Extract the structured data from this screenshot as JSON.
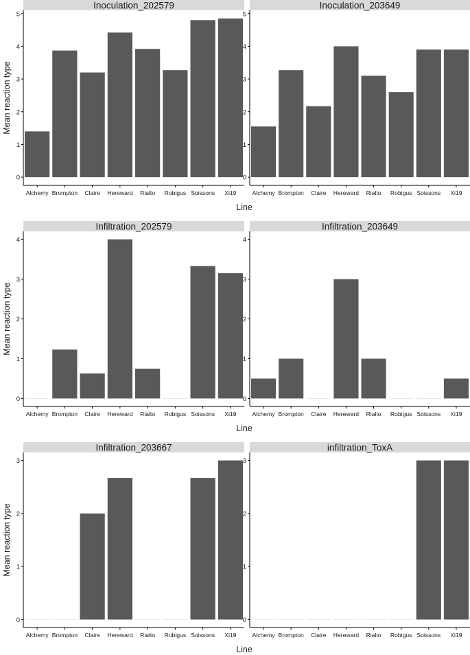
{
  "chart_data": [
    {
      "type": "bar",
      "title": "Inoculation_202579",
      "xlabel": "Line",
      "ylabel": "Mean reaction type",
      "categories": [
        "Alchemy",
        "Brompton",
        "Claire",
        "Hereward",
        "Rialto",
        "Robigus",
        "Soissons",
        "Xi19"
      ],
      "values": [
        1.4,
        3.87,
        3.2,
        4.42,
        3.92,
        3.27,
        4.8,
        4.85
      ],
      "ylim": [
        -0.25,
        5.1
      ],
      "yticks": [
        0,
        1,
        2,
        3,
        4,
        5
      ]
    },
    {
      "type": "bar",
      "title": "Inoculation_203649",
      "xlabel": "Line",
      "ylabel": "Mean reaction type",
      "categories": [
        "Alchemy",
        "Brompton",
        "Claire",
        "Hereward",
        "Rialto",
        "Robigus",
        "Soissons",
        "Xi19"
      ],
      "values": [
        1.55,
        3.27,
        2.17,
        4.0,
        3.1,
        2.6,
        3.9,
        3.9
      ],
      "ylim": [
        -0.25,
        5.1
      ],
      "yticks": [
        0,
        1,
        2,
        3,
        4,
        5
      ]
    },
    {
      "type": "bar",
      "title": "Infiltration_202579",
      "xlabel": "Line",
      "ylabel": "Mean reaction type",
      "categories": [
        "Alchemy",
        "Brompton",
        "Claire",
        "Hereward",
        "Rialto",
        "Robigus",
        "Soissons",
        "Xi19"
      ],
      "values": [
        0,
        1.23,
        0.63,
        4.0,
        0.75,
        0,
        3.33,
        3.15
      ],
      "ylim": [
        -0.2,
        4.2
      ],
      "yticks": [
        0,
        1,
        2,
        3,
        4
      ]
    },
    {
      "type": "bar",
      "title": "Infiltration_203649",
      "xlabel": "Line",
      "ylabel": "Mean reaction type",
      "categories": [
        "Alchemy",
        "Brompton",
        "Claire",
        "Hereward",
        "Rialto",
        "Robigus",
        "Soissons",
        "Xi19"
      ],
      "values": [
        0.5,
        1.0,
        0,
        3.0,
        1.0,
        0,
        0,
        0.5
      ],
      "ylim": [
        -0.2,
        4.2
      ],
      "yticks": [
        0,
        1,
        2,
        3,
        4
      ]
    },
    {
      "type": "bar",
      "title": "Infiltration_203667",
      "xlabel": "Line",
      "ylabel": "Mean reaction type",
      "categories": [
        "Alchemy",
        "Brompton",
        "Claire",
        "Hereward",
        "Rialto",
        "Robigus",
        "Soissons",
        "Xi19"
      ],
      "values": [
        0,
        0,
        2.0,
        2.67,
        0,
        0,
        2.67,
        3.0
      ],
      "ylim": [
        -0.15,
        3.15
      ],
      "yticks": [
        0,
        1,
        2,
        3
      ]
    },
    {
      "type": "bar",
      "title": "infiltration_ToxA",
      "xlabel": "Line",
      "ylabel": "Mean reaction type",
      "categories": [
        "Alchemy",
        "Brompton",
        "Claire",
        "Hereward",
        "Rialto",
        "Robigus",
        "Soissons",
        "Xi19"
      ],
      "values": [
        0,
        0,
        0,
        0,
        0,
        0,
        3.0,
        3.0
      ],
      "ylim": [
        -0.15,
        3.15
      ],
      "yticks": [
        0,
        1,
        2,
        3
      ]
    }
  ]
}
